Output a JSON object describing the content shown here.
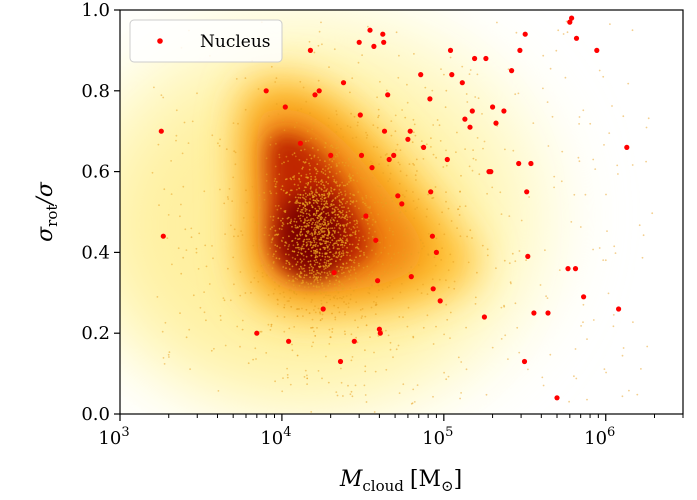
{
  "chart_data": {
    "type": "scatter",
    "title": "",
    "xlabel": {
      "base": "M",
      "sub": "cloud",
      "unit": "[M",
      "unit_sub": "⊙",
      "unit_close": "]"
    },
    "ylabel": {
      "base": "σ",
      "sub": "rot",
      "rest": "/σ"
    },
    "xscale": "log",
    "xlim": [
      1000,
      3000000
    ],
    "ylim": [
      0,
      1
    ],
    "x_ticks": [
      {
        "value": 1000,
        "base": "10",
        "exp": "3"
      },
      {
        "value": 10000,
        "base": "10",
        "exp": "4"
      },
      {
        "value": 100000,
        "base": "10",
        "exp": "5"
      },
      {
        "value": 1000000,
        "base": "10",
        "exp": "6"
      }
    ],
    "y_ticks": [
      {
        "value": 0.0,
        "label": "0.0"
      },
      {
        "value": 0.2,
        "label": "0.2"
      },
      {
        "value": 0.4,
        "label": "0.4"
      },
      {
        "value": 0.6,
        "label": "0.6"
      },
      {
        "value": 0.8,
        "label": "0.8"
      },
      {
        "value": 1.0,
        "label": "1.0"
      }
    ],
    "density_background": {
      "description": "smoothed density of cloud population",
      "peak_x": 17000,
      "peak_y": 0.45,
      "colormap": [
        "#ffffe0",
        "#fff2a0",
        "#ffd040",
        "#ff9a10",
        "#e05000",
        "#a81800",
        "#6a0000"
      ]
    },
    "legend": {
      "position": "top-left",
      "entries": [
        {
          "label": "Nucleus",
          "color": "#ff0000"
        }
      ]
    },
    "series": [
      {
        "name": "Nucleus",
        "color": "#ff0000",
        "points": [
          [
            1800,
            0.7
          ],
          [
            1850,
            0.44
          ],
          [
            7000,
            0.2
          ],
          [
            8000,
            0.8
          ],
          [
            10500,
            0.76
          ],
          [
            11000,
            0.18
          ],
          [
            13000,
            0.67
          ],
          [
            15000,
            0.9
          ],
          [
            16000,
            0.79
          ],
          [
            17000,
            0.8
          ],
          [
            18000,
            0.26
          ],
          [
            20000,
            0.64
          ],
          [
            21000,
            0.35
          ],
          [
            23000,
            0.13
          ],
          [
            24000,
            0.82
          ],
          [
            28000,
            0.18
          ],
          [
            30000,
            0.92
          ],
          [
            30500,
            0.74
          ],
          [
            31000,
            0.64
          ],
          [
            33000,
            0.49
          ],
          [
            35000,
            0.95
          ],
          [
            36000,
            0.61
          ],
          [
            37000,
            0.91
          ],
          [
            38000,
            0.43
          ],
          [
            39000,
            0.33
          ],
          [
            40000,
            0.21
          ],
          [
            40500,
            0.2
          ],
          [
            42000,
            0.94
          ],
          [
            42500,
            0.92
          ],
          [
            43000,
            0.7
          ],
          [
            45000,
            0.79
          ],
          [
            46000,
            0.63
          ],
          [
            49000,
            0.64
          ],
          [
            52000,
            0.54
          ],
          [
            55000,
            0.52
          ],
          [
            60000,
            0.68
          ],
          [
            62000,
            0.7
          ],
          [
            63000,
            0.34
          ],
          [
            72000,
            0.84
          ],
          [
            75000,
            0.66
          ],
          [
            82000,
            0.78
          ],
          [
            83000,
            0.55
          ],
          [
            85000,
            0.44
          ],
          [
            86000,
            0.31
          ],
          [
            90000,
            0.4
          ],
          [
            95000,
            0.28
          ],
          [
            105000,
            0.63
          ],
          [
            110000,
            0.9
          ],
          [
            112000,
            0.84
          ],
          [
            130000,
            0.82
          ],
          [
            135000,
            0.73
          ],
          [
            145000,
            0.71
          ],
          [
            150000,
            0.75
          ],
          [
            155000,
            0.88
          ],
          [
            178000,
            0.24
          ],
          [
            182000,
            0.88
          ],
          [
            190000,
            0.6
          ],
          [
            195000,
            0.6
          ],
          [
            200000,
            0.76
          ],
          [
            210000,
            0.72
          ],
          [
            235000,
            0.75
          ],
          [
            262000,
            0.85
          ],
          [
            290000,
            0.62
          ],
          [
            295000,
            0.9
          ],
          [
            315000,
            0.13
          ],
          [
            318000,
            0.94
          ],
          [
            325000,
            0.55
          ],
          [
            330000,
            0.39
          ],
          [
            345000,
            0.62
          ],
          [
            360000,
            0.25
          ],
          [
            440000,
            0.25
          ],
          [
            500000,
            0.04
          ],
          [
            585000,
            0.36
          ],
          [
            600000,
            0.97
          ],
          [
            615000,
            0.98
          ],
          [
            650000,
            0.36
          ],
          [
            660000,
            0.93
          ],
          [
            730000,
            0.29
          ],
          [
            880000,
            0.9
          ],
          [
            1200000,
            0.26
          ],
          [
            1350000,
            0.66
          ]
        ]
      },
      {
        "name": "Clouds",
        "color": "#e8a020",
        "description": "many small faint points densest near the core region"
      }
    ]
  }
}
